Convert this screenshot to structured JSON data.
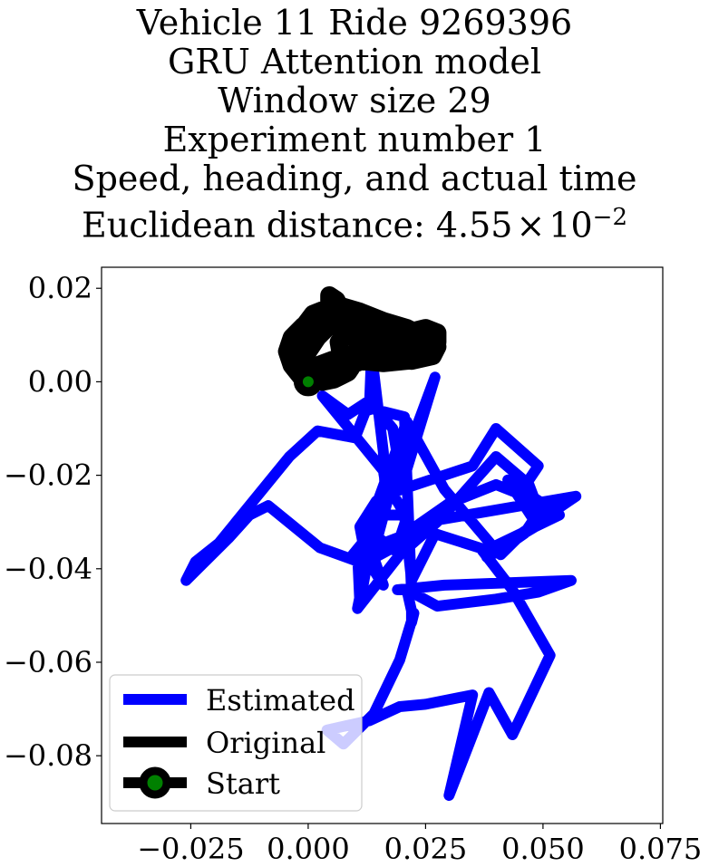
{
  "title_lines": [
    "Vehicle 11 Ride 9269396",
    "GRU Attention model",
    "Window size 29",
    "Experiment number 1",
    "Speed, heading, and actual time"
  ],
  "title_distance_prefix": "Euclidean distance: ",
  "title_distance_mantissa": "4.55",
  "title_distance_times": "×",
  "title_distance_base": "10",
  "title_distance_exponent": "−2",
  "chart_data": {
    "type": "line",
    "xlim": [
      -0.044,
      0.0755
    ],
    "ylim": [
      -0.0945,
      0.0245
    ],
    "xticks": [
      -0.025,
      0.0,
      0.025,
      0.05,
      0.075
    ],
    "xtick_labels": [
      "−0.025",
      "0.000",
      "0.025",
      "0.050",
      "0.075"
    ],
    "yticks": [
      0.02,
      0.0,
      -0.02,
      -0.04,
      -0.06,
      -0.08
    ],
    "ytick_labels": [
      "0.02",
      "0.00",
      "−0.02",
      "−0.04",
      "−0.06",
      "−0.08"
    ],
    "legend": {
      "position": "lower left",
      "entries": [
        "Estimated",
        "Original",
        "Start"
      ]
    },
    "series": [
      {
        "name": "Estimated",
        "color": "#0000ff",
        "x": [
          0.013,
          0.0135,
          0.016,
          0.0165,
          0.02,
          0.027,
          0.02,
          0.018,
          0.013,
          0.0085,
          0.003,
          0.016,
          0.017,
          0.015,
          0.0105,
          0.011,
          0.0125,
          0.011,
          0.0145,
          0.017,
          0.035,
          0.04,
          0.049,
          0.045,
          0.04,
          0.03,
          0.02,
          0.0095,
          0.016,
          0.0165,
          0.021,
          0.019,
          0.0125,
          0.0105,
          0.0195,
          0.028,
          0.04,
          0.047,
          0.05,
          0.045,
          0.041,
          0.04,
          0.029,
          0.021,
          0.0105,
          0.0145,
          0.019,
          0.028,
          0.057,
          0.038,
          0.041,
          0.046,
          0.048,
          0.0425,
          0.0535,
          0.038,
          0.027,
          0.022,
          0.0205,
          0.0155,
          0.0115,
          0.016,
          0.0135,
          0.0025,
          -0.0085,
          -0.0125,
          -0.017,
          -0.026,
          -0.024,
          -0.019,
          -0.004,
          0.002,
          0.01,
          0.0125,
          0.0205,
          0.022,
          0.0275,
          0.04,
          0.049,
          0.056,
          0.029,
          0.019,
          0.021,
          0.022,
          0.022,
          0.0225,
          0.0195,
          0.014,
          0.0075,
          0.004,
          0.013,
          0.0195,
          0.025,
          0.035,
          0.03,
          0.03,
          0.0385,
          0.0435,
          0.0515,
          0.0435,
          0.037
        ],
        "y": [
          -0.006,
          0.006,
          -0.015,
          -0.026,
          -0.018,
          0.001,
          -0.022,
          -0.01,
          -0.004,
          -0.007,
          -0.003,
          -0.019,
          -0.025,
          -0.0325,
          -0.0365,
          -0.0475,
          -0.039,
          -0.031,
          -0.0255,
          -0.024,
          -0.018,
          -0.01,
          -0.018,
          -0.024,
          -0.022,
          -0.026,
          -0.033,
          -0.037,
          -0.029,
          -0.0215,
          -0.029,
          -0.035,
          -0.0385,
          -0.0485,
          -0.037,
          -0.0295,
          -0.016,
          -0.022,
          -0.03,
          -0.033,
          -0.037,
          -0.036,
          -0.023,
          -0.0085,
          -0.0375,
          -0.033,
          -0.0365,
          -0.0295,
          -0.0245,
          -0.0375,
          -0.036,
          -0.0325,
          -0.0295,
          -0.021,
          -0.0285,
          -0.036,
          -0.0325,
          -0.0425,
          -0.0285,
          -0.0285,
          -0.0305,
          -0.0435,
          -0.0395,
          -0.0355,
          -0.0265,
          -0.0285,
          -0.0335,
          -0.0425,
          -0.0385,
          -0.0345,
          -0.016,
          -0.0105,
          -0.012,
          -0.0055,
          -0.0075,
          -0.045,
          -0.048,
          -0.0465,
          -0.045,
          -0.0425,
          -0.0435,
          -0.0445,
          -0.0445,
          -0.049,
          -0.0515,
          -0.0495,
          -0.0595,
          -0.071,
          -0.0775,
          -0.0745,
          -0.0725,
          -0.0695,
          -0.069,
          -0.067,
          -0.0885,
          -0.0885,
          -0.0665,
          -0.0755,
          -0.0585,
          -0.0445,
          -0.036
        ]
      },
      {
        "name": "Original",
        "color": "#000000",
        "x": [
          0.0,
          -0.0015,
          -0.0035,
          -0.0045,
          -0.0035,
          -0.001,
          0.0025,
          0.0055,
          0.0085,
          0.0105,
          0.0115,
          0.0105,
          0.0085,
          0.0055,
          0.003,
          0.001,
          0.002,
          0.006,
          0.011,
          0.016,
          0.021,
          0.025,
          0.0275,
          0.0275,
          0.0255,
          0.021,
          0.016,
          0.011,
          0.006,
          0.0045,
          0.0045,
          0.006,
          0.0075,
          0.009,
          0.011,
          0.0075,
          0.004,
          0.001,
          -0.002,
          -0.0035,
          -0.002,
          0.001,
          0.006,
          0.011,
          0.016,
          0.021,
          0.025,
          0.0275,
          0.0255,
          0.021,
          0.016,
          0.011,
          0.007,
          0.0065,
          0.009,
          0.011,
          0.0085,
          0.005,
          0.002,
          0.0,
          -0.0015,
          0.0005,
          0.004,
          0.009,
          0.014,
          0.0195,
          0.0245,
          0.0275,
          0.0265,
          0.022,
          0.0165,
          0.0145
        ],
        "y": [
          0.0,
          0.001,
          0.0035,
          0.0065,
          0.0095,
          0.012,
          0.0145,
          0.0155,
          0.015,
          0.0125,
          0.0085,
          0.005,
          0.002,
          0.0005,
          0.0,
          0.0015,
          0.0035,
          0.005,
          0.0065,
          0.0085,
          0.0105,
          0.0115,
          0.0105,
          0.0085,
          0.007,
          0.0075,
          0.0095,
          0.012,
          0.0145,
          0.0165,
          0.0185,
          0.0175,
          0.0145,
          0.011,
          0.0075,
          0.0035,
          0.0015,
          0.0015,
          0.0035,
          0.0065,
          0.0105,
          0.0145,
          0.0165,
          0.015,
          0.013,
          0.0115,
          0.0095,
          0.0075,
          0.0055,
          0.0045,
          0.004,
          0.0045,
          0.0055,
          0.0085,
          0.0115,
          0.0135,
          0.014,
          0.0125,
          0.0095,
          0.0065,
          0.004,
          0.0025,
          0.002,
          0.0035,
          0.0055,
          0.0075,
          0.0085,
          0.0075,
          0.0055,
          0.0045,
          0.005,
          0.0065
        ]
      },
      {
        "name": "Start",
        "color": "#008000",
        "x": [
          0.0
        ],
        "y": [
          0.0
        ]
      }
    ]
  }
}
